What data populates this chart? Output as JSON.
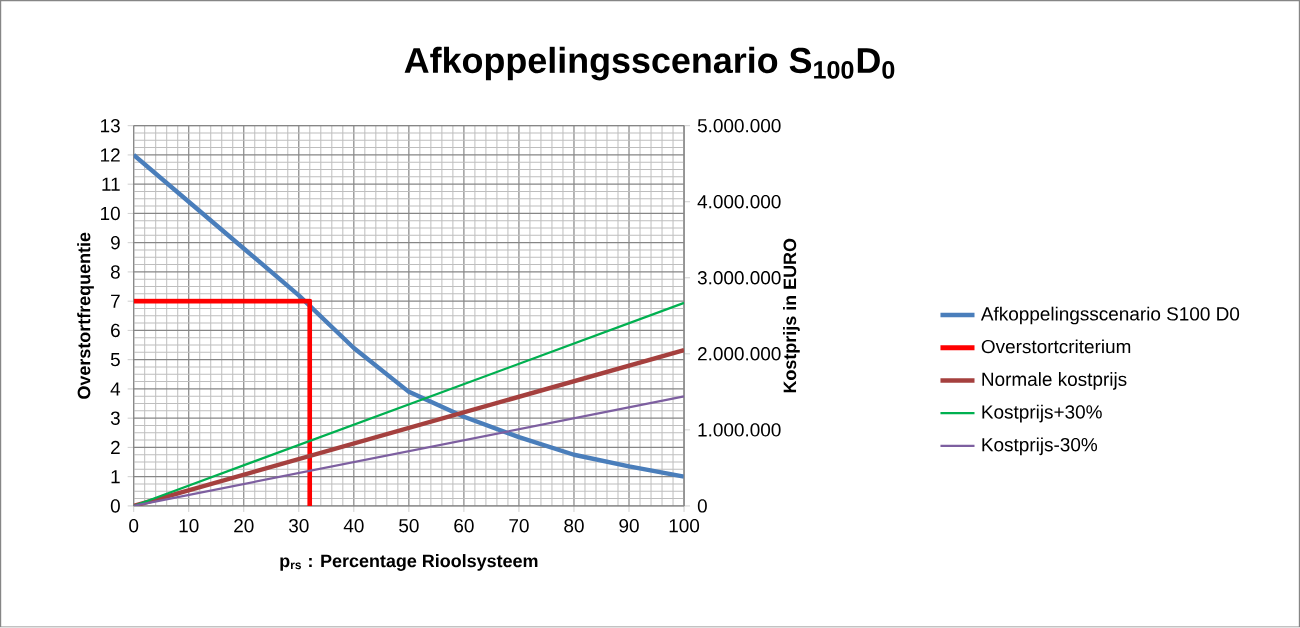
{
  "chart_data": {
    "type": "line",
    "title": "Afkoppelingsscenario S$_{100}$D$_{0}$",
    "xlabel": "p$_{rs}$ : Percentage Rioolsysteem",
    "ylabel": "Overstortfrequentie",
    "y2label": "Kostprijs in EURO",
    "xlim": [
      0,
      100
    ],
    "xticks": [
      0,
      10,
      20,
      30,
      40,
      50,
      60,
      70,
      80,
      90,
      100
    ],
    "ylim": [
      0,
      13
    ],
    "yticks": [
      0,
      1,
      2,
      3,
      4,
      5,
      6,
      7,
      8,
      9,
      10,
      11,
      12,
      13
    ],
    "y2lim": [
      0,
      5000000
    ],
    "y2ticks": [
      0,
      {
        "value": 1000000,
        "label": "1.000.000"
      },
      {
        "value": 2000000,
        "label": "2.000.000"
      },
      {
        "value": 3000000,
        "label": "3.000.000"
      },
      {
        "value": 4000000,
        "label": "4.000.000"
      },
      {
        "value": 5000000,
        "label": "5.000.000"
      }
    ],
    "grid": true,
    "legend": "right",
    "series": [
      {
        "name": "Afkoppelingsscenario S100 D0",
        "color": "#4a7ebb",
        "x": [
          0,
          10,
          20,
          30,
          40,
          50,
          60,
          70,
          80,
          90,
          100
        ],
        "values": [
          12,
          10.4,
          8.8,
          7.2,
          5.4,
          3.9,
          3.05,
          2.35,
          1.75,
          1.35,
          1.0
        ]
      },
      {
        "name": "Overstortcriterium",
        "color": "#ff0000",
        "x": [
          0,
          32,
          32
        ],
        "values": [
          7,
          7,
          0
        ]
      },
      {
        "name": "Normale kostprijs",
        "color": "#a5403e",
        "axis": "y2",
        "x": [
          0,
          100
        ],
        "values": [
          0,
          2050000
        ]
      },
      {
        "name": "Kostprijs+30%",
        "color": "#00b050",
        "axis": "y2",
        "x": [
          0,
          100
        ],
        "values": [
          0,
          2670000
        ]
      },
      {
        "name": "Kostprijs-30%",
        "color": "#7d5fa0",
        "axis": "y2",
        "x": [
          0,
          100
        ],
        "values": [
          0,
          1440000
        ]
      }
    ]
  }
}
